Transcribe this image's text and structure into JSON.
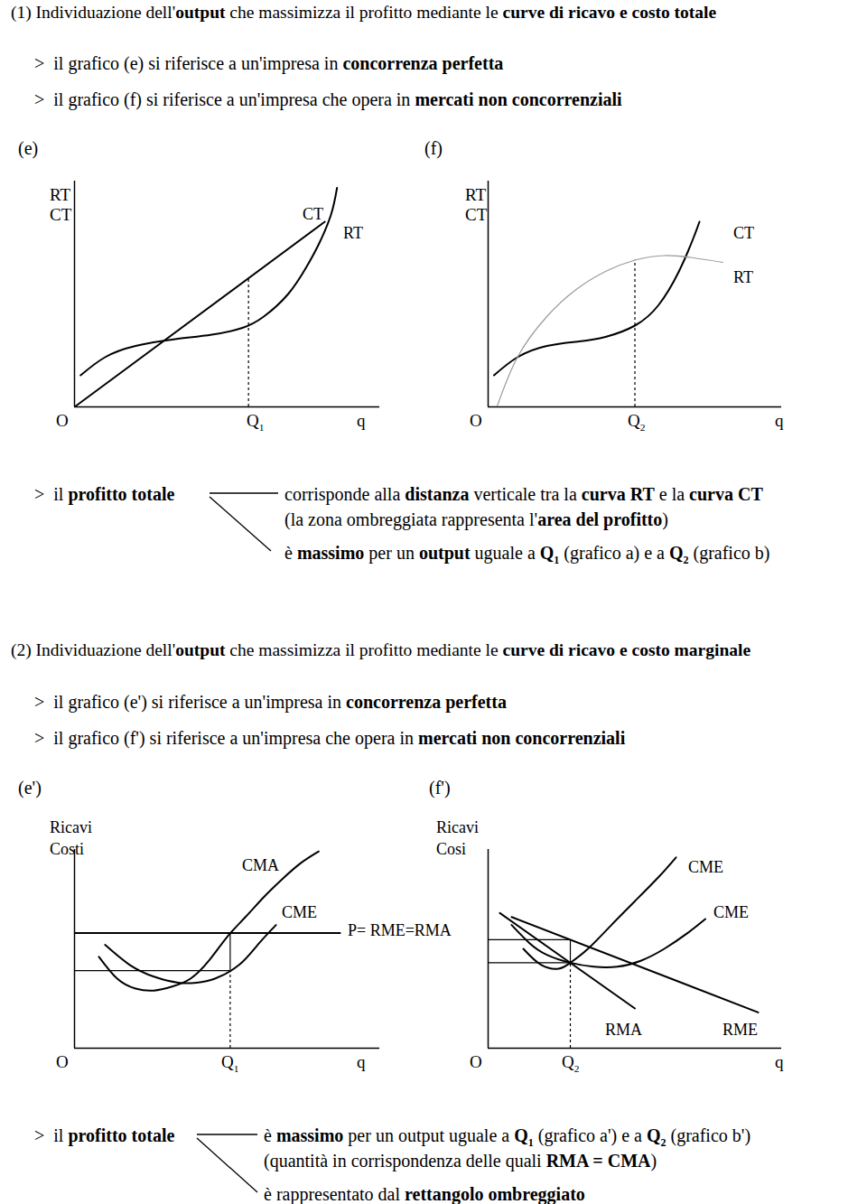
{
  "texts": [
    [
      {
        "t": "(1) Individuazione dell'"
      },
      {
        "t": "output",
        "b": true
      },
      {
        "t": " che massimizza il profitto mediante le "
      },
      {
        "t": "curve di ricavo e costo totale",
        "b": true
      }
    ],
    [
      {
        "t": ">  il grafico (e) si riferisce a un'impresa in "
      },
      {
        "t": "concorrenza perfetta",
        "b": true
      }
    ],
    [
      {
        "t": ">  il grafico (f) si riferisce a un'impresa che opera in "
      },
      {
        "t": "mercati non concorrenziali",
        "b": true
      }
    ],
    [
      {
        "t": ">  il "
      },
      {
        "t": "profitto totale",
        "b": true
      }
    ],
    [
      {
        "t": "corrisponde alla "
      },
      {
        "t": "distanza",
        "b": true
      },
      {
        "t": " verticale tra la "
      },
      {
        "t": "curva RT",
        "b": true
      },
      {
        "t": " e la "
      },
      {
        "t": "curva CT",
        "b": true
      }
    ],
    [
      {
        "t": "(la zona ombreggiata rappresenta l'"
      },
      {
        "t": "area del profitto",
        "b": true
      },
      {
        "t": ")"
      }
    ],
    [
      {
        "t": "è "
      },
      {
        "t": "massimo",
        "b": true
      },
      {
        "t": " per un "
      },
      {
        "t": "output",
        "b": true
      },
      {
        "t": " uguale a "
      },
      {
        "t": "Q",
        "b": true
      },
      {
        "t": "1",
        "b": true,
        "sub": true
      },
      {
        "t": " (grafico a) e a "
      },
      {
        "t": "Q",
        "b": true
      },
      {
        "t": "2",
        "b": true,
        "sub": true
      },
      {
        "t": " (grafico b)"
      }
    ],
    [
      {
        "t": "(2) Individuazione dell'"
      },
      {
        "t": "output",
        "b": true
      },
      {
        "t": " che massimizza il profitto mediante le "
      },
      {
        "t": "curve di ricavo e costo marginale",
        "b": true
      }
    ],
    [
      {
        "t": ">  il grafico (e') si riferisce a un'impresa in "
      },
      {
        "t": "concorrenza perfetta",
        "b": true
      }
    ],
    [
      {
        "t": ">  il grafico (f') si riferisce a un'impresa che opera in "
      },
      {
        "t": "mercati non concorrenziali",
        "b": true
      }
    ],
    [
      {
        "t": ">  il "
      },
      {
        "t": "profitto totale",
        "b": true
      }
    ],
    [
      {
        "t": "è "
      },
      {
        "t": "massimo",
        "b": true
      },
      {
        "t": " per un output uguale a "
      },
      {
        "t": "Q",
        "b": true
      },
      {
        "t": "1",
        "b": true,
        "sub": true
      },
      {
        "t": " (grafico a') e a "
      },
      {
        "t": "Q",
        "b": true
      },
      {
        "t": "2",
        "b": true,
        "sub": true
      },
      {
        "t": " (grafico b')"
      }
    ],
    [
      {
        "t": "(quantità in corrispondenza delle quali "
      },
      {
        "t": "RMA = CMA",
        "b": true
      },
      {
        "t": ")"
      }
    ],
    [
      {
        "t": "è rappresentato dal "
      },
      {
        "t": "rettangolo ombreggiato",
        "b": true
      }
    ]
  ],
  "chart_data": [
    {
      "type": "line",
      "title": "(e)",
      "y_label": [
        "RT",
        "CT"
      ],
      "x_label": "q",
      "origin": "O",
      "xlim": [
        0,
        100
      ],
      "ylim": [
        0,
        100
      ],
      "xticks": [],
      "yticks": [],
      "tick_labels": false,
      "series": [
        {
          "name": "CT",
          "color": "#000000",
          "line_style": "solid",
          "x": [
            2,
            10,
            20,
            33,
            45,
            55,
            62,
            70,
            76,
            80,
            84,
            86
          ],
          "values": [
            14,
            22,
            27,
            30,
            32,
            35,
            40,
            50,
            62,
            72,
            85,
            97
          ]
        },
        {
          "name": "RT",
          "color": "#000000",
          "line_style": "solid",
          "x": [
            0,
            82
          ],
          "values": [
            0,
            82
          ]
        }
      ],
      "marker": {
        "label": "Q1",
        "x": 57,
        "y": [
          0,
          57
        ]
      }
    },
    {
      "type": "line",
      "title": "(f)",
      "y_label": [
        "RT",
        "CT"
      ],
      "x_label": "q",
      "origin": "O",
      "xlim": [
        0,
        100
      ],
      "ylim": [
        0,
        100
      ],
      "xticks": [],
      "yticks": [],
      "tick_labels": false,
      "series": [
        {
          "name": "CT",
          "color": "#000000",
          "line_style": "solid",
          "x": [
            2,
            10,
            20,
            31,
            40,
            50,
            58,
            65,
            70,
            72
          ],
          "values": [
            14,
            22,
            27,
            29,
            31,
            36,
            45,
            60,
            75,
            82
          ]
        },
        {
          "name": "RT",
          "color": "#999999",
          "line_style": "solid",
          "x": [
            3,
            10,
            20,
            30,
            40,
            50,
            60,
            70,
            80
          ],
          "values": [
            0,
            22,
            40,
            52,
            60,
            65,
            67,
            66,
            64
          ]
        }
      ],
      "marker": {
        "label": "Q2",
        "x": 50,
        "y": [
          0,
          65
        ]
      }
    },
    {
      "type": "line",
      "title": "(e')",
      "y_label": [
        "Ricavi",
        "Costi"
      ],
      "x_label": "q",
      "origin": "O",
      "xlim": [
        0,
        100
      ],
      "ylim": [
        0,
        100
      ],
      "xticks": [],
      "yticks": [],
      "tick_labels": false,
      "series": [
        {
          "name": "CMA",
          "color": "#000000",
          "line_style": "solid",
          "x": [
            8,
            14,
            20,
            26,
            32,
            38,
            44,
            50,
            56,
            62,
            68,
            74,
            80
          ],
          "values": [
            46,
            35,
            30,
            29,
            31,
            35,
            44,
            56,
            66,
            76,
            85,
            93,
            99
          ]
        },
        {
          "name": "CME",
          "color": "#000000",
          "line_style": "solid",
          "x": [
            10,
            18,
            26,
            34,
            40,
            46,
            54,
            60,
            66
          ],
          "values": [
            52,
            42,
            36,
            33,
            33,
            35,
            42,
            52,
            62
          ]
        },
        {
          "name": "P= RME=RMA",
          "color": "#000000",
          "line_style": "solid",
          "x": [
            0,
            87
          ],
          "values": [
            58,
            58
          ]
        }
      ],
      "rectangle": {
        "x": [
          0,
          51
        ],
        "y": [
          39,
          58
        ]
      },
      "marker": {
        "label": "Q1",
        "x": 51,
        "y": [
          0,
          39
        ]
      }
    },
    {
      "type": "line",
      "title": "(f')",
      "y_label": [
        "Ricavi",
        "Cosi"
      ],
      "x_label": "q",
      "origin": "O",
      "xlim": [
        0,
        100
      ],
      "ylim": [
        0,
        100
      ],
      "xticks": [],
      "yticks": [],
      "tick_labels": false,
      "series": [
        {
          "name": "CME",
          "color": "#000000",
          "line_style": "solid",
          "x": [
            12,
            18,
            24,
            28,
            34,
            42,
            50,
            58,
            64
          ],
          "values": [
            50,
            42,
            40,
            43,
            50,
            62,
            74,
            86,
            96
          ]
        },
        {
          "name": "CME",
          "color": "#000000",
          "line_style": "solid",
          "x": [
            8,
            14,
            20,
            28,
            36,
            44,
            52,
            60,
            68,
            74
          ],
          "values": [
            62,
            53,
            47,
            43,
            41,
            41,
            44,
            50,
            58,
            65
          ]
        },
        {
          "name": "RMA",
          "color": "#000000",
          "line_style": "solid",
          "x": [
            4,
            50
          ],
          "values": [
            68,
            20
          ]
        },
        {
          "name": "RME",
          "color": "#000000",
          "line_style": "solid",
          "x": [
            8,
            92
          ],
          "values": [
            66,
            18
          ]
        }
      ],
      "rectangle": {
        "x": [
          0,
          28
        ],
        "y": [
          43,
          54.6
        ]
      },
      "marker": {
        "label": "Q2",
        "x": 28,
        "y": [
          0,
          43
        ]
      }
    }
  ]
}
